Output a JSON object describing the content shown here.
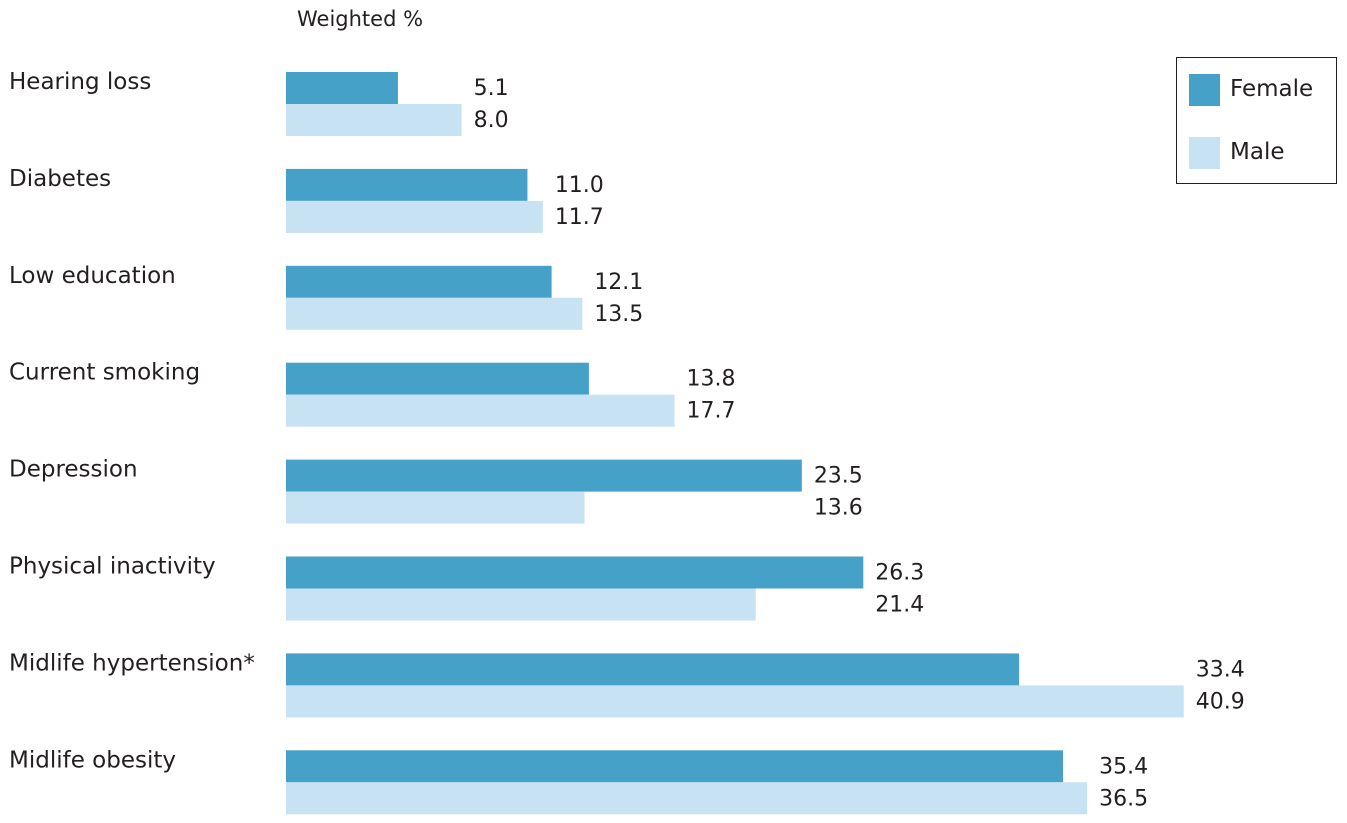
{
  "chart_data": {
    "type": "bar",
    "orientation": "horizontal",
    "title": "Weighted %",
    "xlabel": "",
    "ylabel": "",
    "categories": [
      "Hearing loss",
      "Diabetes",
      "Low education",
      "Current smoking",
      "Depression",
      "Physical inactivity",
      "Midlife hypertension*",
      "Midlife obesity"
    ],
    "series": [
      {
        "name": "Female",
        "color": "#45a1c8",
        "values": [
          5.1,
          11.0,
          12.1,
          13.8,
          23.5,
          26.3,
          33.4,
          35.4
        ],
        "labels": [
          "5.1",
          "11.0",
          "12.1",
          "13.8",
          "23.5",
          "26.3",
          "33.4",
          "35.4"
        ]
      },
      {
        "name": "Male",
        "color": "#c6e2f3",
        "values": [
          8.0,
          11.7,
          13.5,
          17.7,
          13.6,
          21.4,
          40.9,
          36.5
        ],
        "labels": [
          "8.0",
          "11.7",
          "13.5",
          "17.7",
          "13.6",
          "21.4",
          "40.9",
          "36.5"
        ]
      }
    ],
    "xlim": [
      0,
      41
    ],
    "grid": false,
    "legend_position": "top-right"
  }
}
